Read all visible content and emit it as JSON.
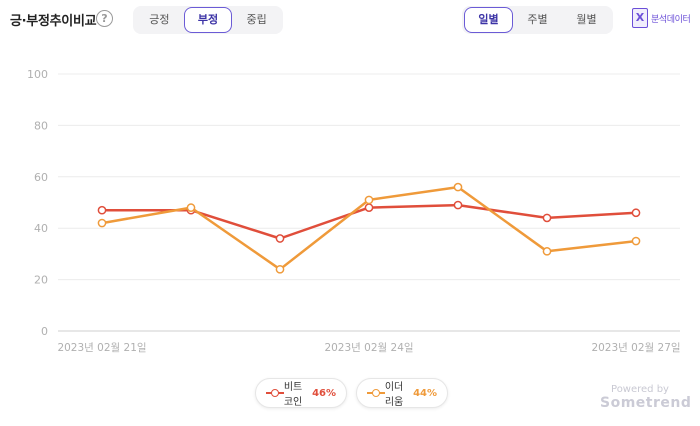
{
  "header": {
    "title": "긍·부정추이비교",
    "help_glyph": "?",
    "sentiment_tabs": [
      {
        "label": "긍정",
        "active": false
      },
      {
        "label": "부정",
        "active": true
      },
      {
        "label": "중립",
        "active": false
      }
    ],
    "period_tabs": [
      {
        "label": "일별",
        "active": true
      },
      {
        "label": "주별",
        "active": false
      },
      {
        "label": "월별",
        "active": false
      }
    ],
    "export_label": "분석데이터",
    "export_icon": "excel-icon"
  },
  "chart_data": {
    "type": "line",
    "x": [
      "2023-02-21",
      "2023-02-22",
      "2023-02-23",
      "2023-02-24",
      "2023-02-25",
      "2023-02-26",
      "2023-02-27"
    ],
    "x_tick_labels": [
      {
        "index": 0,
        "label": "2023년 02월 21일"
      },
      {
        "index": 3,
        "label": "2023년 02월 24일"
      },
      {
        "index": 6,
        "label": "2023년 02월 27일"
      }
    ],
    "ylim": [
      0,
      100
    ],
    "yticks": [
      0,
      20,
      40,
      60,
      80,
      100
    ],
    "grid": true,
    "legend_position": "bottom-center",
    "series": [
      {
        "name": "비트코인",
        "percent": "46%",
        "color": "#e04e3b",
        "values": [
          47,
          47,
          36,
          48,
          49,
          44,
          46
        ]
      },
      {
        "name": "이더리움",
        "percent": "44%",
        "color": "#ef9a3a",
        "values": [
          42,
          48,
          24,
          51,
          56,
          31,
          35
        ]
      }
    ]
  },
  "footer": {
    "powered_by": "Powered by",
    "brand": "Sometrend"
  }
}
